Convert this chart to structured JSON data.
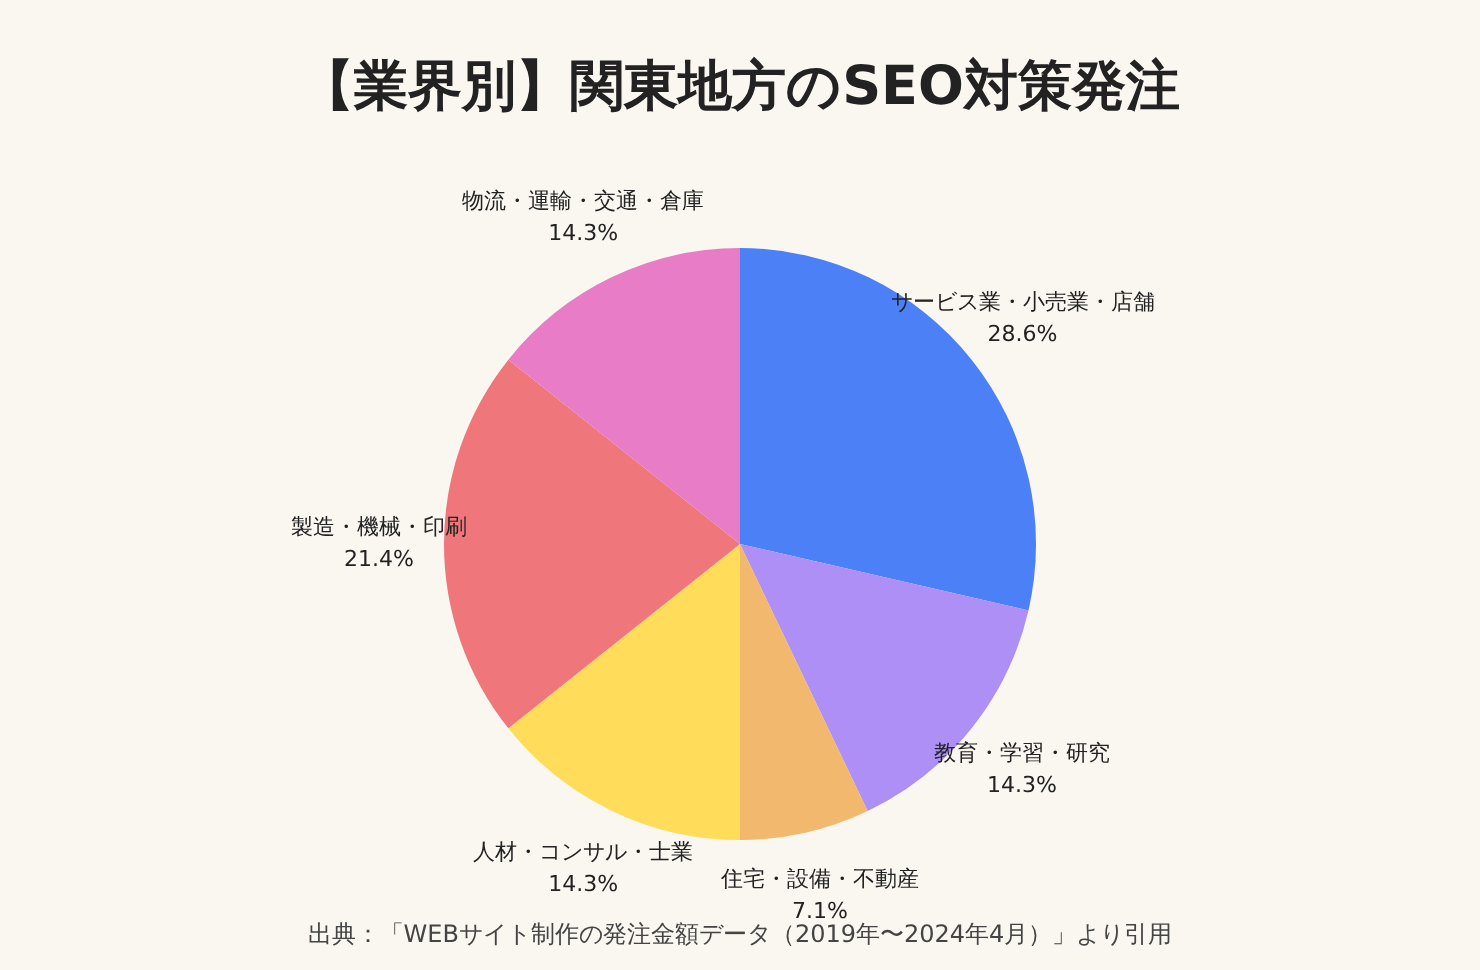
{
  "chart_data": {
    "type": "pie",
    "title": "【業界別】関東地方のSEO対策発注",
    "categories": [
      "サービス業・小売業・店舗",
      "教育・学習・研究",
      "住宅・設備・不動産",
      "人材・コンサル・士業",
      "製造・機械・印刷",
      "物流・運輸・交通・倉庫"
    ],
    "values": [
      28.6,
      14.3,
      7.1,
      14.3,
      21.4,
      14.3
    ],
    "colors": [
      "#4b80f6",
      "#ad8ff5",
      "#f2b96e",
      "#ffdc5a",
      "#ef767b",
      "#e87cc7"
    ],
    "value_labels": [
      "28.6%",
      "14.3%",
      "7.1%",
      "14.3%",
      "21.4%",
      "14.3%"
    ],
    "legend": false,
    "annotations": [
      "出典：「WEBサイト制作の発注金額データ（2019年〜2024年4月）」より引用"
    ]
  }
}
